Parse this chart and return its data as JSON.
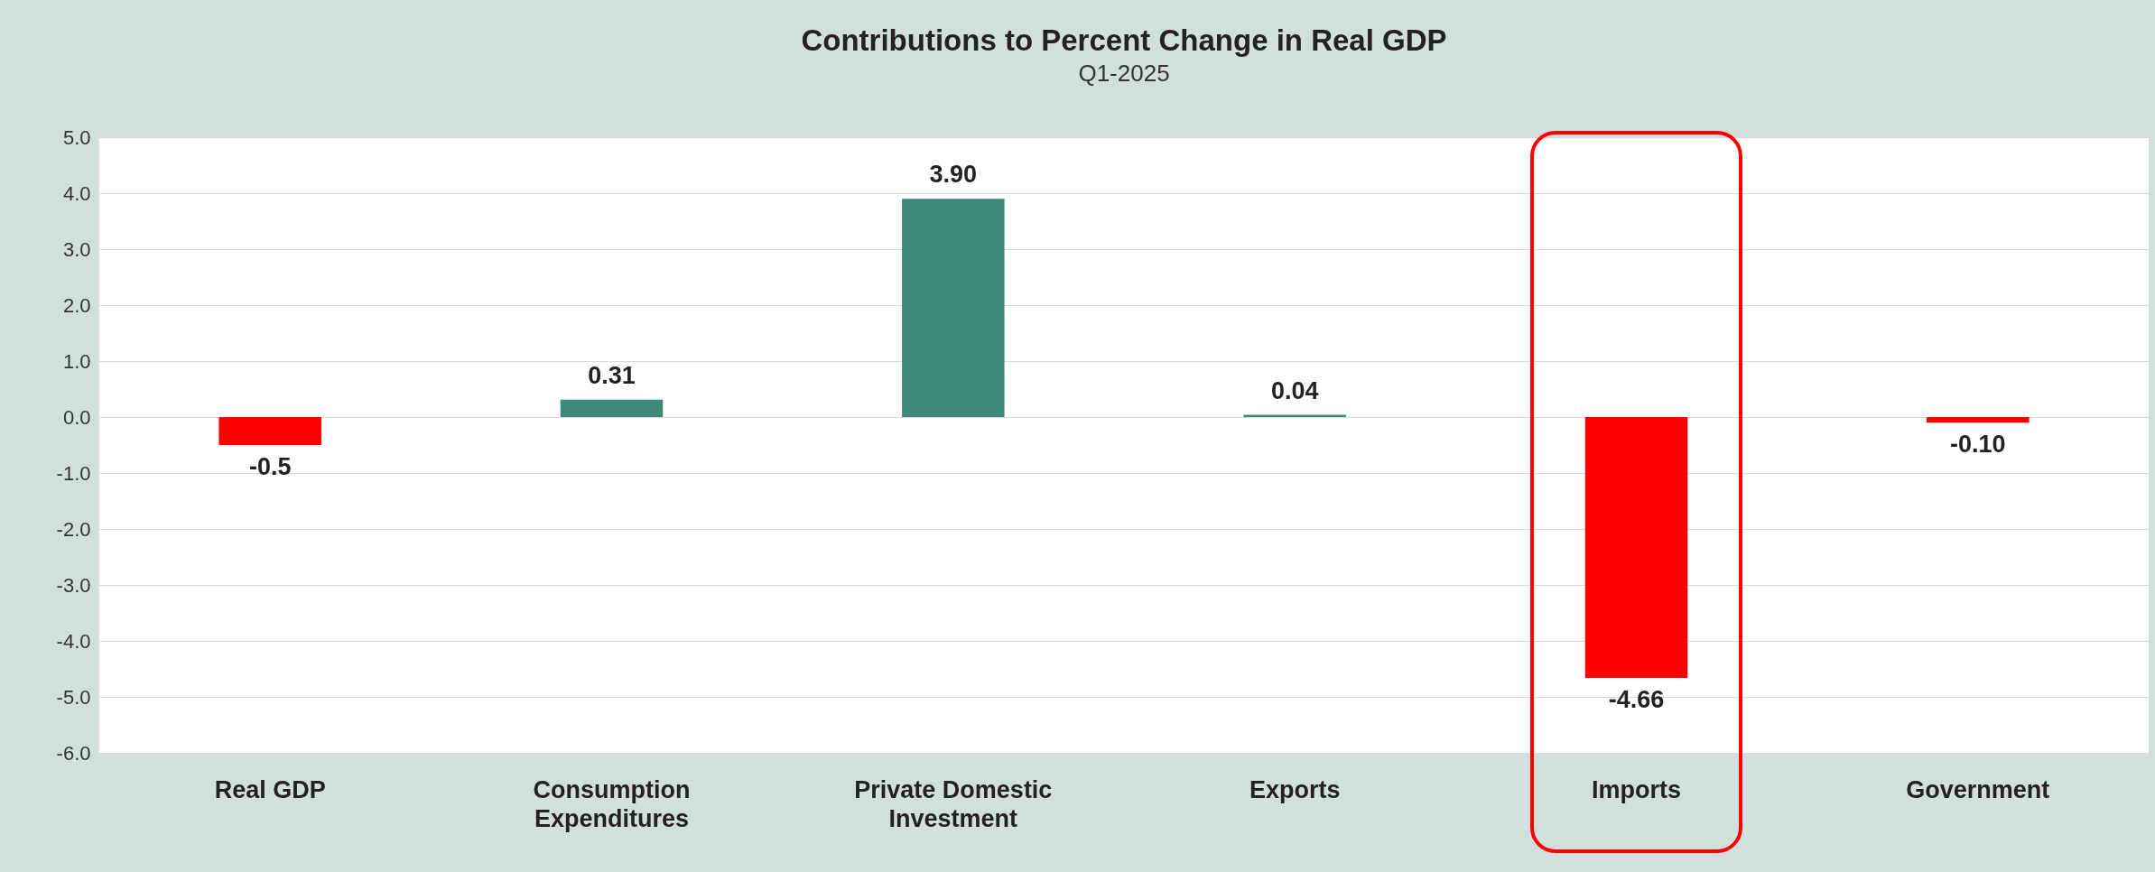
{
  "chart_data": {
    "type": "bar",
    "title": "Contributions to Percent Change in Real GDP",
    "subtitle": "Q1-2025",
    "categories": [
      "Real GDP",
      "Consumption Expenditures",
      "Private Domestic Investment",
      "Exports",
      "Imports",
      "Government"
    ],
    "values": [
      -0.5,
      0.31,
      3.9,
      0.04,
      -4.66,
      -0.1
    ],
    "value_labels": [
      "-0.5",
      "0.31",
      "3.90",
      "0.04",
      "-4.66",
      "-0.10"
    ],
    "colors": [
      "#ff0000",
      "#3e8879",
      "#3e8879",
      "#3e8879",
      "#ff0000",
      "#ff0000"
    ],
    "ylim": [
      -6,
      5
    ],
    "yticks": [
      {
        "value": -6,
        "label": "-6.0"
      },
      {
        "value": -5,
        "label": "-5.0"
      },
      {
        "value": -4,
        "label": "-4.0"
      },
      {
        "value": -3,
        "label": "-3.0"
      },
      {
        "value": -2,
        "label": "-2.0"
      },
      {
        "value": -1,
        "label": "-1.0"
      },
      {
        "value": 0,
        "label": "0.0"
      },
      {
        "value": 1,
        "label": "1.0"
      },
      {
        "value": 2,
        "label": "2.0"
      },
      {
        "value": 3,
        "label": "3.0"
      },
      {
        "value": 4,
        "label": "4.0"
      },
      {
        "value": 5,
        "label": "5.0"
      }
    ],
    "grid": "y"
  }
}
